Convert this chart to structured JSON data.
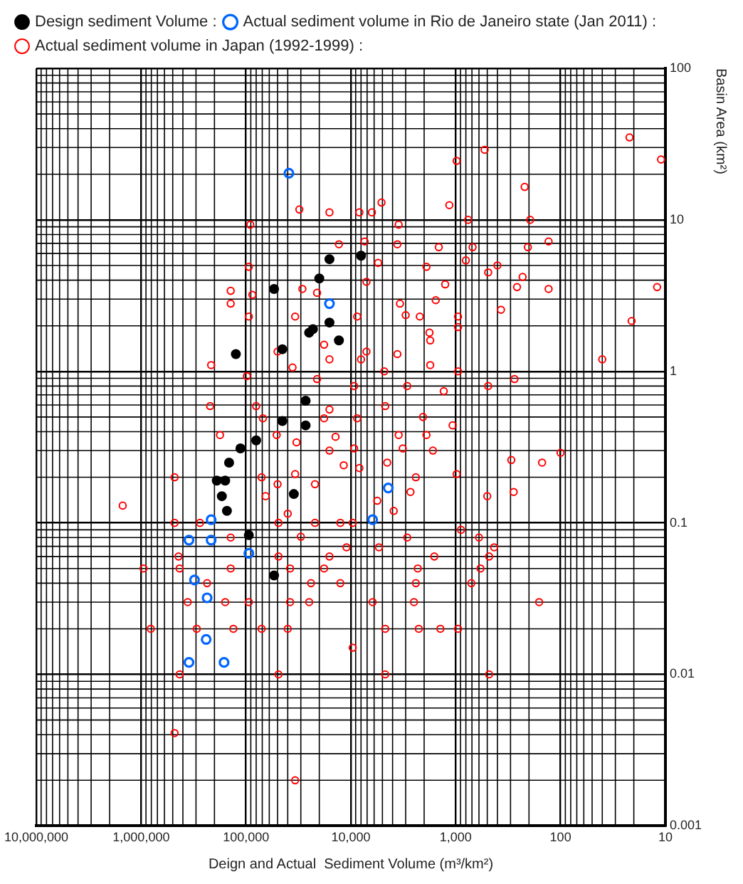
{
  "chart_data": {
    "type": "scatter",
    "xlabel": "Deign and Actual  Sediment Volume (m³/km²)",
    "ylabel": "Basin Area (km²)",
    "log": "xy",
    "grid": true,
    "legend": "top",
    "marker": "circle",
    "xlim": [
      10000000,
      10
    ],
    "xticks": [
      {
        "value": 10000000,
        "label": "10,000,000"
      },
      {
        "value": 1000000,
        "label": "1,000,000"
      },
      {
        "value": 100000,
        "label": "100,000"
      },
      {
        "value": 10000,
        "label": "10,000"
      },
      {
        "value": 1000,
        "label": "1,000"
      },
      100,
      10
    ],
    "ylim": [
      0.001,
      100
    ],
    "yticks": [
      0.001,
      0.01,
      0.1,
      1,
      10,
      100
    ],
    "series": [
      {
        "name": "Design sediment Volume :",
        "color": "#000000",
        "values": [
          5.5,
          5.8,
          4.1,
          3.5,
          2.1,
          1.9,
          1.8,
          1.6,
          1.4,
          1.3,
          0.64,
          0.47,
          0.44,
          0.31,
          0.35,
          0.25,
          0.19,
          0.19,
          0.155,
          0.15,
          0.12,
          0.083,
          0.045
        ],
        "x": [
          16000,
          8000,
          20000,
          54000,
          16000,
          23000,
          25000,
          13000,
          45000,
          125000,
          27000,
          45000,
          27000,
          113000,
          80000,
          145000,
          190000,
          158000,
          35000,
          170000,
          152000,
          94000,
          54000
        ]
      },
      {
        "name": "Actual sediment volume in Rio de Janeiro state (Jan 2011) :",
        "color": "#0066ff",
        "values": [
          20.3,
          2.8,
          0.17,
          0.105,
          0.105,
          0.077,
          0.077,
          0.063,
          0.042,
          0.032,
          0.017,
          0.012,
          0.012
        ],
        "x": [
          39000,
          16000,
          4400,
          6200,
          215000,
          350000,
          215000,
          94000,
          310000,
          235000,
          240000,
          350000,
          162000
        ]
      },
      {
        "name": "Actual sediment volume in Japan (1992-1999) :",
        "color": "#ff0000",
        "values": [
          35,
          25,
          29,
          24.5,
          16.5,
          12.5,
          13,
          11.7,
          11.2,
          11.2,
          11.2,
          9.3,
          10,
          10,
          9.3,
          6.9,
          7.2,
          6.9,
          6.6,
          6.6,
          6.6,
          7.2,
          4.9,
          5.2,
          3.9,
          4.9,
          5.4,
          4.5,
          5.0,
          4.2,
          3.6,
          3.5,
          3.6,
          3.75,
          3.4,
          3.2,
          3.5,
          3.3,
          2.8,
          2.8,
          2.95,
          2.55,
          2.3,
          2.3,
          2.3,
          2.35,
          2.3,
          2.3,
          2.15,
          1.8,
          1.96,
          1.1,
          1.35,
          1.5,
          1.35,
          1.3,
          1.6,
          1.2,
          1.2,
          1.2,
          1.06,
          1.0,
          1.1,
          1.0,
          0.89,
          0.8,
          0.93,
          0.89,
          0.8,
          0.8,
          0.74,
          0.59,
          0.59,
          0.56,
          0.59,
          0.49,
          0.49,
          0.49,
          0.5,
          0.44,
          0.38,
          0.38,
          0.37,
          0.38,
          0.38,
          0.34,
          0.3,
          0.31,
          0.31,
          0.3,
          0.26,
          0.25,
          0.29,
          0.2,
          0.2,
          0.21,
          0.24,
          0.23,
          0.25,
          0.2,
          0.21,
          0.18,
          0.18,
          0.16,
          0.16,
          0.15,
          0.13,
          0.15,
          0.14,
          0.12,
          0.115,
          0.1,
          0.1,
          0.1,
          0.1,
          0.1,
          0.09,
          0.1,
          0.081,
          0.08,
          0.08,
          0.08,
          0.069,
          0.069,
          0.069,
          0.06,
          0.06,
          0.06,
          0.06,
          0.06,
          0.05,
          0.05,
          0.05,
          0.05,
          0.05,
          0.05,
          0.05,
          0.04,
          0.04,
          0.04,
          0.04,
          0.04,
          0.03,
          0.03,
          0.03,
          0.03,
          0.03,
          0.03,
          0.03,
          0.03,
          0.02,
          0.02,
          0.02,
          0.02,
          0.02,
          0.02,
          0.02,
          0.02,
          0.02,
          0.015,
          0.01,
          0.01,
          0.01,
          0.01,
          0.0041,
          0.002
        ],
        "x": [
          22,
          11,
          530,
          980,
          220,
          1150,
          5100,
          31000,
          16000,
          8300,
          6300,
          3500,
          760,
          195,
          91000,
          13000,
          7400,
          3600,
          1450,
          690,
          205,
          130,
          94000,
          5500,
          7100,
          1900,
          800,
          490,
          400,
          230,
          260,
          130,
          12,
          1260,
          140000,
          87000,
          29000,
          21000,
          140000,
          3400,
          1550,
          370,
          94000,
          34000,
          8700,
          3000,
          2200,
          950,
          21,
          1780,
          950,
          215000,
          50000,
          18000,
          7100,
          3600,
          1750,
          40,
          16000,
          8000,
          36000,
          4800,
          1750,
          950,
          275,
          490,
          98000,
          21000,
          9300,
          2900,
          1300,
          220000,
          80000,
          16000,
          4700,
          69000,
          18000,
          8700,
          2050,
          1070,
          177000,
          51000,
          14000,
          3500,
          1900,
          33000,
          16000,
          9300,
          3200,
          1650,
          295,
          150,
          100,
          480000,
          71000,
          34000,
          11700,
          8300,
          4500,
          2400,
          980,
          50000,
          22000,
          2700,
          280,
          500,
          1500000,
          65000,
          5600,
          3900,
          40000,
          480000,
          275000,
          49000,
          22000,
          9600,
          890,
          12600,
          30000,
          2900,
          600,
          140000,
          11000,
          5400,
          430,
          440000,
          49000,
          16000,
          1600,
          480,
          950000,
          430000,
          140000,
          38000,
          18000,
          2300,
          580,
          235000,
          24000,
          12600,
          2400,
          710,
          360000,
          158000,
          94000,
          38000,
          25000,
          6200,
          2500,
          160,
          810000,
          295000,
          132000,
          71000,
          40000,
          4700,
          2250,
          1400,
          950,
          9600,
          430000,
          49000,
          4700,
          480,
          480000,
          34000
        ]
      }
    ]
  }
}
